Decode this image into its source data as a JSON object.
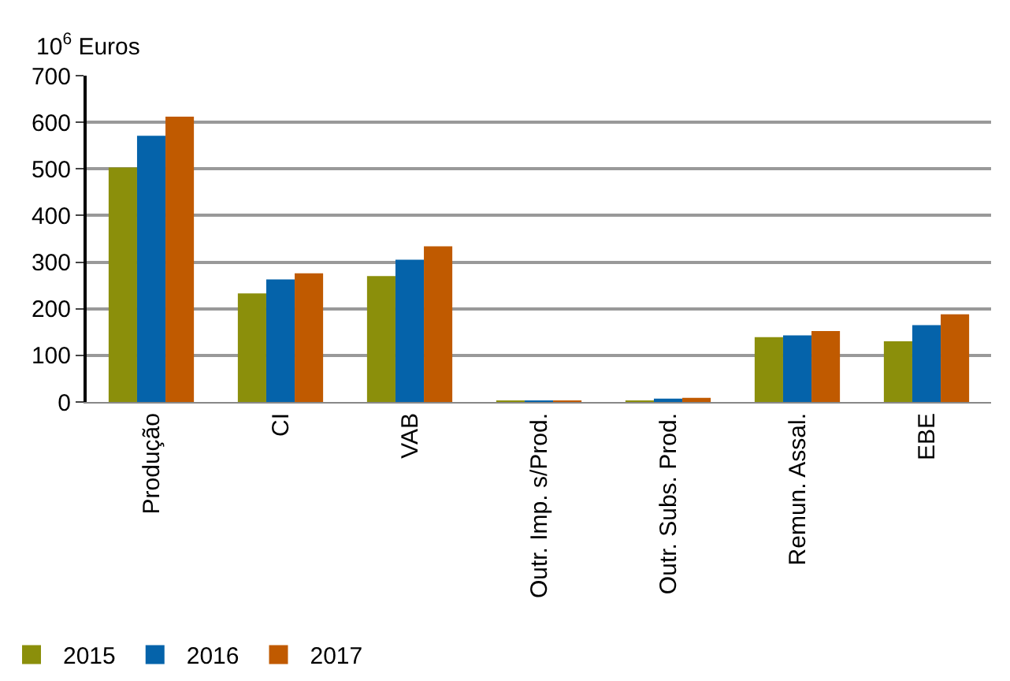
{
  "chart_data": {
    "type": "bar",
    "ylabel": "10$^{6}$ Euros",
    "categories": [
      "Produção",
      "CI",
      "VAB",
      "Outr. Imp. s/Prod.",
      "Outr. Subs. Prod.",
      "Remun. Assal.",
      "EBE"
    ],
    "series": [
      {
        "name": "2015",
        "color": "#8b8f0b",
        "values": [
          503,
          233,
          270,
          2,
          2,
          139,
          130
        ]
      },
      {
        "name": "2016",
        "color": "#0563aa",
        "values": [
          571,
          263,
          305,
          2,
          7,
          143,
          165
        ]
      },
      {
        "name": "2017",
        "color": "#c05a00",
        "values": [
          612,
          276,
          334,
          2,
          9,
          152,
          188
        ]
      }
    ],
    "ylim": [
      0,
      700
    ],
    "yticks": [
      0,
      100,
      200,
      300,
      400,
      500,
      600,
      700
    ],
    "grid": "y",
    "legend": "bottom left"
  }
}
